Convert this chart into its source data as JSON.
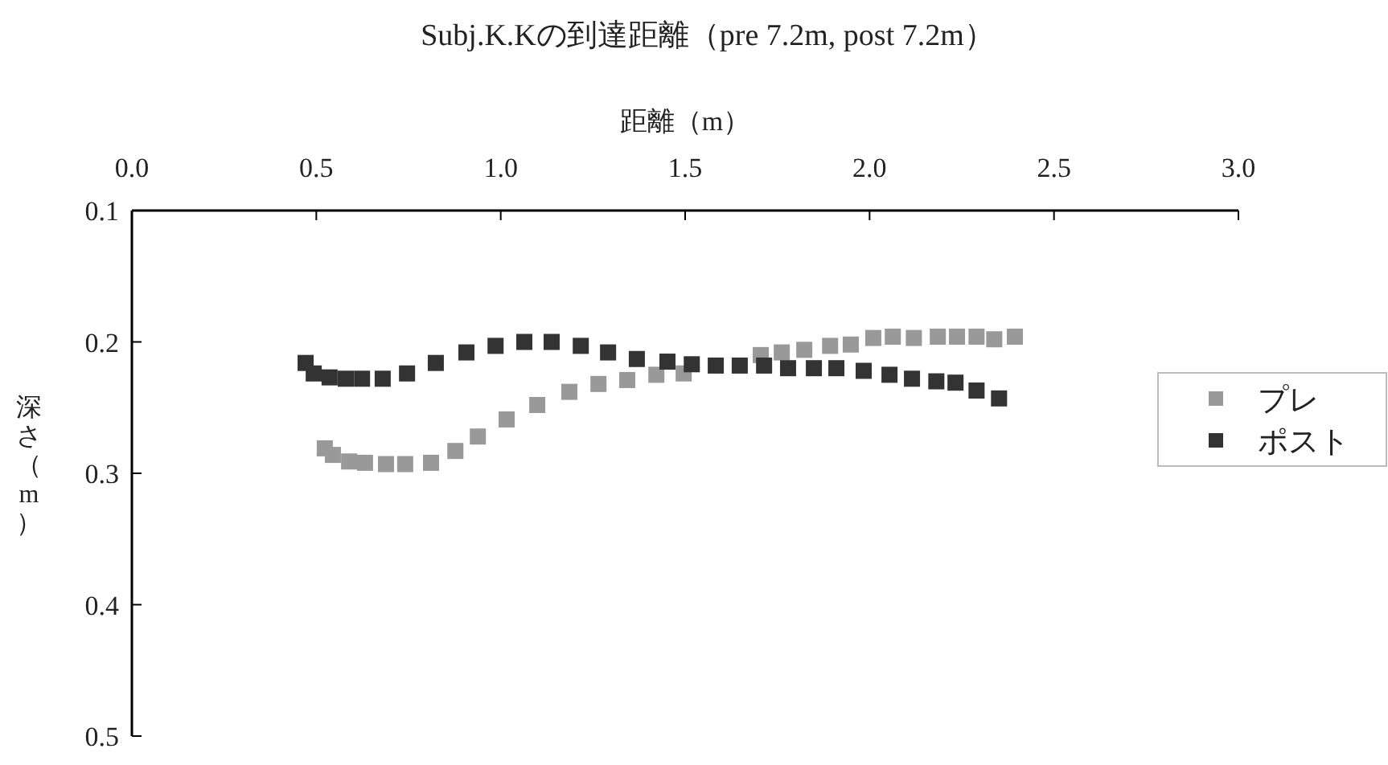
{
  "chart_data": {
    "type": "scatter",
    "title": "Subj.K.Kの到達距離（pre 7.2m, post 7.2m）",
    "xlabel": "距離（m）",
    "ylabel": "深さ（m）",
    "xlim": [
      0,
      3
    ],
    "xticks": [
      {
        "value": 0,
        "label": "0.0"
      },
      0.5,
      {
        "value": 1,
        "label": "1.0"
      },
      1.5,
      {
        "value": 2,
        "label": "2.0"
      },
      2.5,
      {
        "value": 3,
        "label": "3.0"
      }
    ],
    "ylim": [
      0.5,
      0.1
    ],
    "yticks": [
      0.1,
      0.2,
      0.3,
      0.4,
      0.5
    ],
    "grid": false,
    "legend": "right",
    "marker": "square",
    "series": [
      {
        "name": "プレ",
        "color": "#999999",
        "x": [
          0.523,
          0.545,
          0.589,
          0.632,
          0.689,
          0.741,
          0.811,
          0.877,
          0.938,
          1.016,
          1.099,
          1.186,
          1.265,
          1.343,
          1.422,
          1.496,
          1.705,
          1.762,
          1.823,
          1.893,
          1.949,
          2.01,
          2.063,
          2.12,
          2.185,
          2.237,
          2.29,
          2.338,
          2.394
        ],
        "values": [
          0.281,
          0.286,
          0.291,
          0.292,
          0.293,
          0.293,
          0.292,
          0.283,
          0.272,
          0.259,
          0.248,
          0.238,
          0.232,
          0.229,
          0.225,
          0.224,
          0.21,
          0.208,
          0.206,
          0.203,
          0.202,
          0.197,
          0.196,
          0.197,
          0.196,
          0.196,
          0.196,
          0.198,
          0.196
        ]
      },
      {
        "name": "ポスト",
        "color": "#333333",
        "x": [
          0.471,
          0.493,
          0.536,
          0.58,
          0.624,
          0.68,
          0.746,
          0.824,
          0.907,
          0.986,
          1.064,
          1.138,
          1.217,
          1.291,
          1.369,
          1.452,
          1.518,
          1.583,
          1.648,
          1.714,
          1.779,
          1.849,
          1.91,
          1.984,
          2.054,
          2.115,
          2.181,
          2.233,
          2.29,
          2.351
        ],
        "values": [
          0.216,
          0.224,
          0.227,
          0.228,
          0.228,
          0.228,
          0.224,
          0.216,
          0.208,
          0.203,
          0.2,
          0.2,
          0.203,
          0.208,
          0.213,
          0.215,
          0.217,
          0.218,
          0.218,
          0.218,
          0.22,
          0.22,
          0.22,
          0.222,
          0.225,
          0.228,
          0.23,
          0.231,
          0.237,
          0.243
        ]
      }
    ]
  }
}
